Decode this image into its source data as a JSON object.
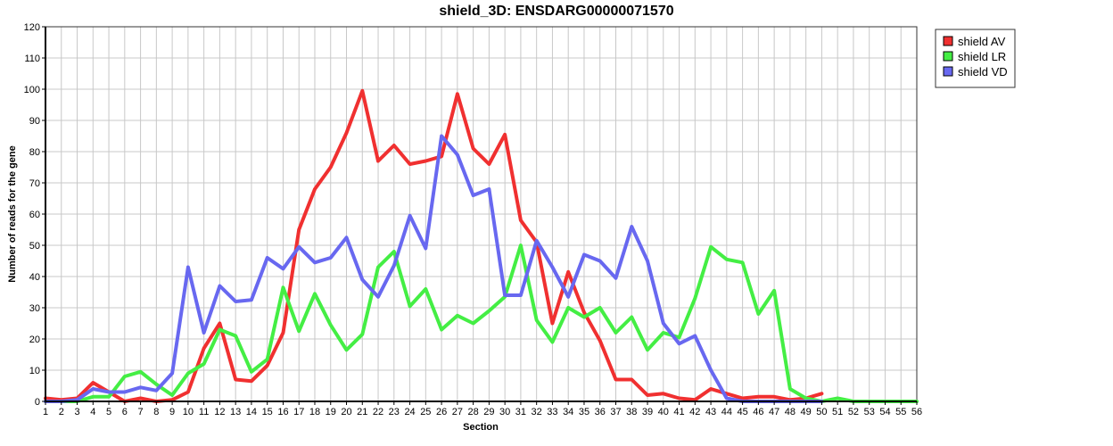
{
  "chart_data": {
    "type": "line",
    "title": "shield_3D: ENSDARG00000071570",
    "xlabel": "Section",
    "ylabel": "Number of reads for the gene",
    "ylim": [
      0,
      120
    ],
    "y_ticks": [
      0,
      10,
      20,
      30,
      40,
      50,
      60,
      70,
      80,
      90,
      100,
      110,
      120
    ],
    "x_ticks": [
      1,
      2,
      3,
      4,
      5,
      6,
      7,
      8,
      9,
      10,
      11,
      12,
      13,
      14,
      15,
      16,
      17,
      18,
      19,
      20,
      21,
      22,
      23,
      24,
      25,
      26,
      27,
      28,
      29,
      30,
      31,
      32,
      33,
      34,
      35,
      36,
      37,
      38,
      39,
      40,
      41,
      42,
      43,
      44,
      45,
      46,
      47,
      48,
      49,
      50,
      51,
      52,
      53,
      54,
      55,
      56
    ],
    "xlim": [
      1,
      56
    ],
    "grid": true,
    "legend_position": "top-right outside",
    "series": [
      {
        "name": "shield AV",
        "color": "#f03030",
        "x": [
          1,
          2,
          3,
          4,
          5,
          6,
          7,
          8,
          9,
          10,
          11,
          12,
          13,
          14,
          15,
          16,
          17,
          18,
          19,
          20,
          21,
          22,
          23,
          24,
          25,
          26,
          27,
          28,
          29,
          30,
          31,
          32,
          33,
          34,
          35,
          36,
          37,
          38,
          39,
          40,
          41,
          42,
          43,
          44,
          45,
          46,
          47,
          48,
          49,
          50
        ],
        "values": [
          1,
          0.5,
          1,
          6,
          3,
          0,
          1,
          0,
          0.5,
          3,
          17,
          25,
          7,
          6.5,
          11.5,
          22,
          55,
          68,
          75,
          86,
          99.5,
          77,
          82,
          76,
          77,
          78.5,
          98.5,
          81,
          76,
          85.5,
          58,
          51,
          25,
          41.5,
          28.5,
          19.5,
          7,
          7,
          2,
          2.5,
          1,
          0.5,
          4,
          2.5,
          1,
          1.5,
          1.5,
          0.5,
          1,
          2.5
        ]
      },
      {
        "name": "shield LR",
        "color": "#44ee44",
        "x": [
          1,
          2,
          3,
          4,
          5,
          6,
          7,
          8,
          9,
          10,
          11,
          12,
          13,
          14,
          15,
          16,
          17,
          18,
          19,
          20,
          21,
          22,
          23,
          24,
          25,
          26,
          27,
          28,
          29,
          30,
          31,
          32,
          33,
          34,
          35,
          36,
          37,
          38,
          39,
          40,
          41,
          42,
          43,
          44,
          45,
          46,
          47,
          48,
          49,
          50,
          51,
          52,
          53,
          54,
          55,
          56
        ],
        "values": [
          0,
          0,
          0,
          1.5,
          1.5,
          8,
          9.5,
          5.5,
          2,
          9,
          12,
          23,
          21,
          9.5,
          13.5,
          36.5,
          22.5,
          34.5,
          24.5,
          16.5,
          21.5,
          43,
          48,
          30.5,
          36,
          23,
          27.5,
          25,
          29,
          33.5,
          50,
          26,
          19,
          30,
          27,
          30,
          22,
          27,
          16.5,
          22,
          20.5,
          33,
          49.5,
          45.5,
          44.5,
          28,
          35.5,
          4,
          1,
          0,
          1,
          0,
          0,
          0,
          0,
          0
        ]
      },
      {
        "name": "shield VD",
        "color": "#6868f0",
        "x": [
          1,
          2,
          3,
          4,
          5,
          6,
          7,
          8,
          9,
          10,
          11,
          12,
          13,
          14,
          15,
          16,
          17,
          18,
          19,
          20,
          21,
          22,
          23,
          24,
          25,
          26,
          27,
          28,
          29,
          30,
          31,
          32,
          33,
          34,
          35,
          36,
          37,
          38,
          39,
          40,
          41,
          42,
          43,
          44,
          45,
          46,
          47,
          48,
          49,
          50
        ],
        "values": [
          0,
          0,
          0.5,
          4,
          3,
          3,
          4.5,
          3.5,
          9,
          43,
          22,
          37,
          32,
          32.5,
          46,
          42.5,
          49.5,
          44.5,
          46,
          52.5,
          39,
          33.5,
          43.5,
          59.5,
          49,
          85,
          79,
          66,
          68,
          34,
          34,
          51.5,
          43,
          33.5,
          47,
          45,
          39.5,
          56,
          45,
          25,
          18.5,
          21,
          10,
          1,
          0,
          0,
          0,
          0,
          0,
          0
        ]
      }
    ]
  }
}
